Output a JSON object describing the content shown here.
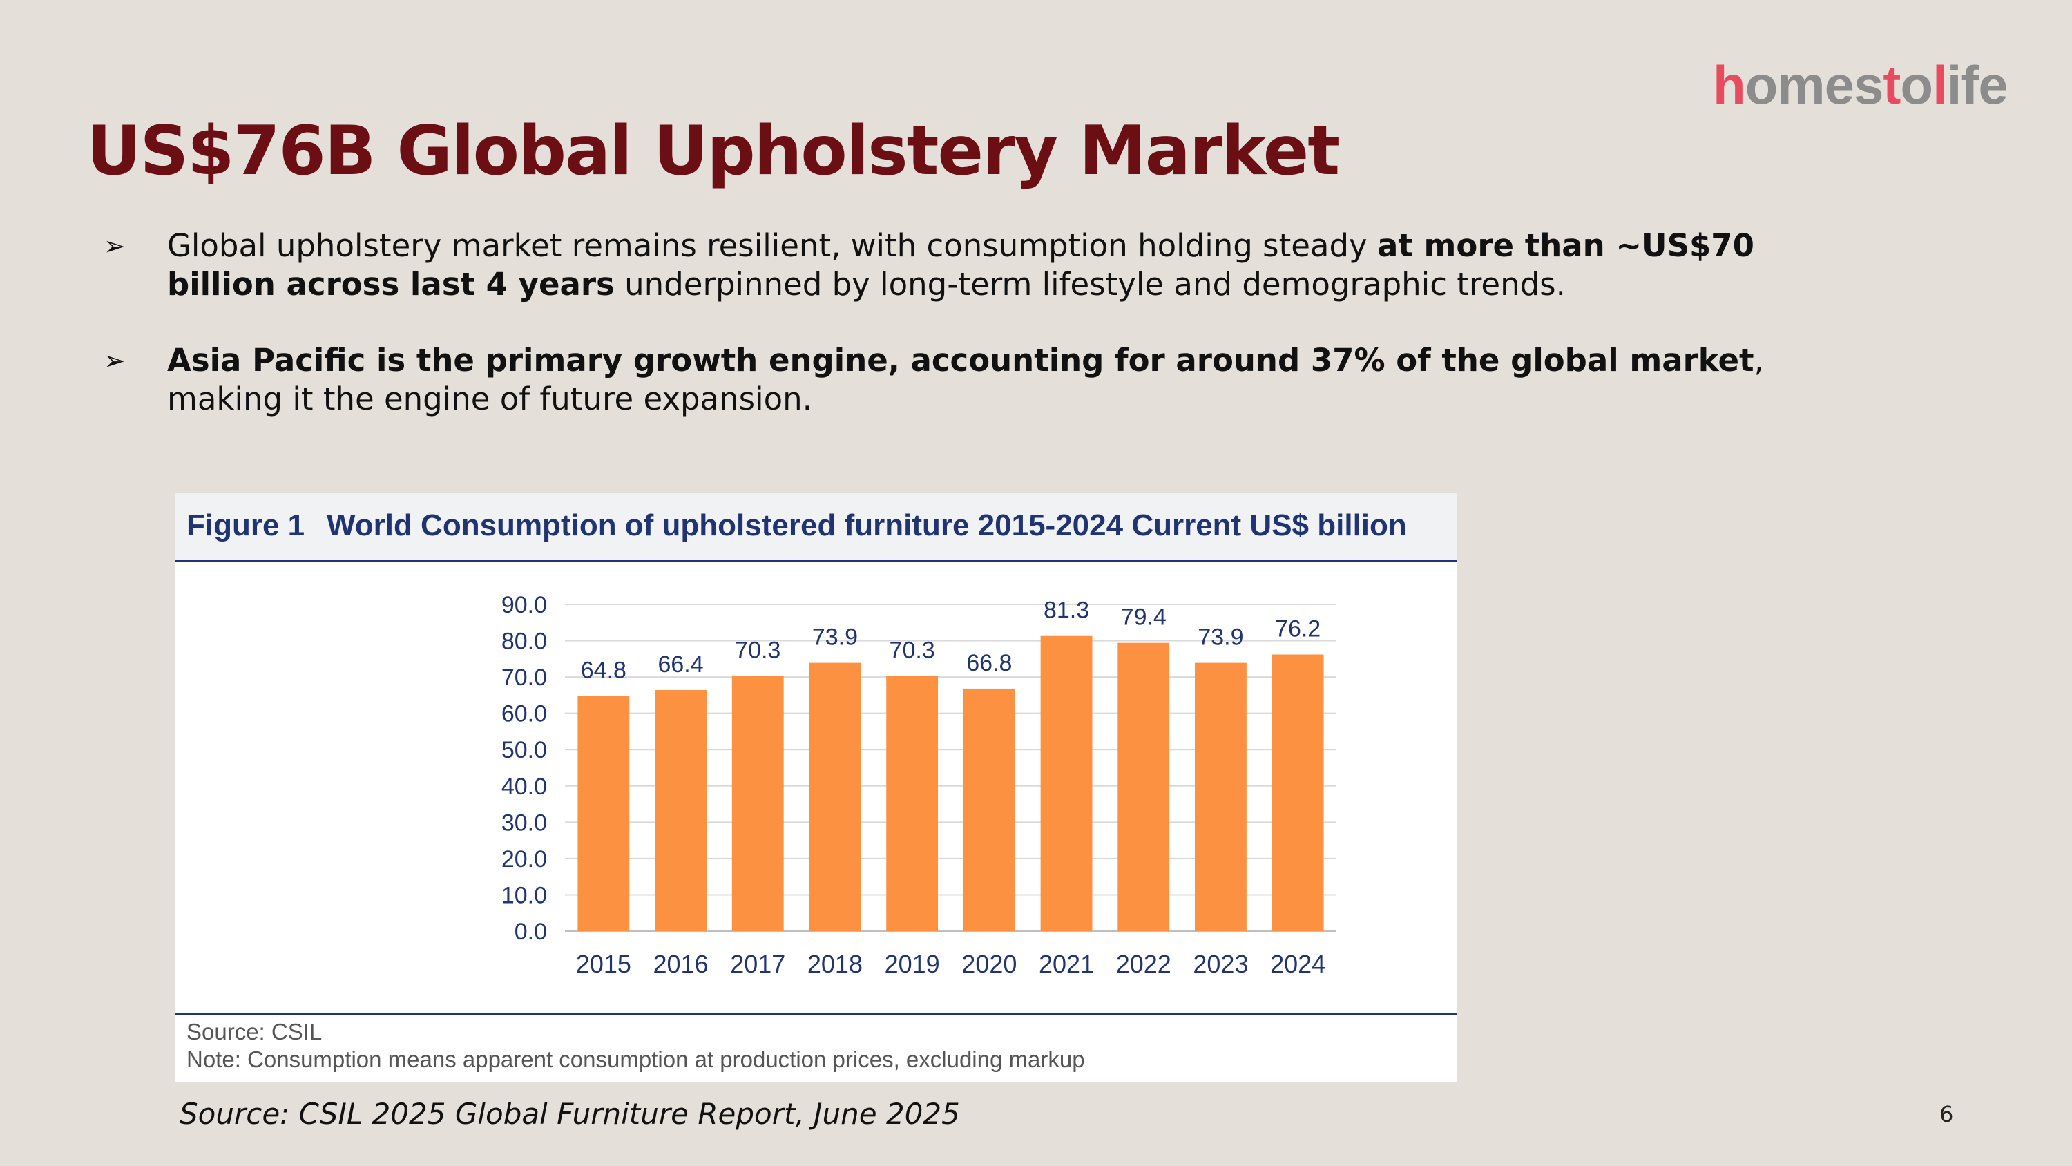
{
  "logo": {
    "part1": "h",
    "part2": "omes",
    "part3": "t",
    "part4": "o",
    "part5": "l",
    "part6": "ife"
  },
  "title": "US$76B Global Upholstery Market",
  "bullets": [
    {
      "arrow": "➢",
      "text1": "Global upholstery market remains resilient, with consumption holding steady ",
      "bold": "at more than ~US$70 billion across last 4 years",
      "text2": " underpinned by long-term lifestyle and demographic trends."
    },
    {
      "arrow": "➢",
      "text1": "",
      "bold": "Asia Pacific is the primary growth engine, accounting for around 37% of the global market",
      "text2": ", making it the engine of future expansion."
    }
  ],
  "figure": {
    "label": "Figure 1",
    "title": "World Consumption of upholstered furniture 2015-2024 Current US$ billion",
    "source_line": "Source: CSIL",
    "note_line": "Note: Consumption means apparent consumption at production prices, excluding markup"
  },
  "chart_data": {
    "type": "bar",
    "title": "World Consumption of upholstered furniture 2015-2024 Current US$ billion",
    "categories": [
      "2015",
      "2016",
      "2017",
      "2018",
      "2019",
      "2020",
      "2021",
      "2022",
      "2023",
      "2024"
    ],
    "values": [
      64.8,
      66.4,
      70.3,
      73.9,
      70.3,
      66.8,
      81.3,
      79.4,
      73.9,
      76.2
    ],
    "value_labels": [
      "64.8",
      "66.4",
      "70.3",
      "73.9",
      "70.3",
      "66.8",
      "81.3",
      "79.4",
      "73.9",
      "76.2"
    ],
    "yticks": [
      "0.0",
      "10.0",
      "20.0",
      "30.0",
      "40.0",
      "50.0",
      "60.0",
      "70.0",
      "80.0",
      "90.0"
    ],
    "ylim": [
      0,
      90
    ],
    "xlabel": "",
    "ylabel": "",
    "grid": true,
    "bar_color": "#fb9141"
  },
  "source": "Source: CSIL 2025 Global Furniture Report, June 2025",
  "page_number": "6"
}
